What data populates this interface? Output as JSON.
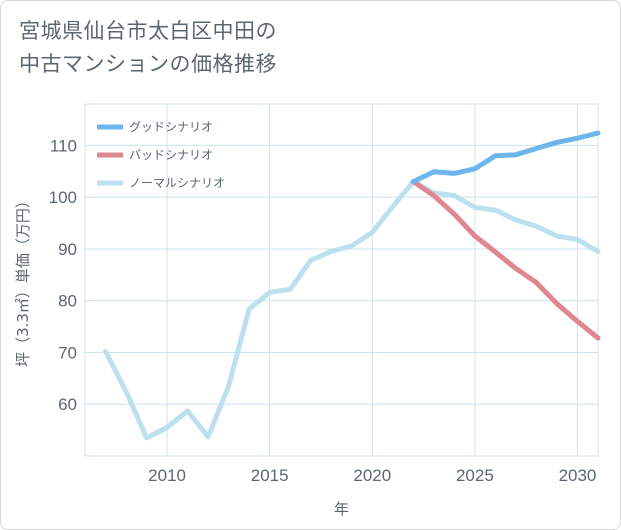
{
  "title_line1": "宮城県仙台市太白区中田の",
  "title_line2": "中古マンションの価格推移",
  "chart_data": {
    "type": "line",
    "xlabel": "年",
    "ylabel": "坪（3.3㎡）単価（万円）",
    "xlim": [
      2006,
      2031
    ],
    "ylim": [
      50,
      118
    ],
    "xticks": [
      2010,
      2015,
      2020,
      2025,
      2030
    ],
    "yticks": [
      60,
      70,
      80,
      90,
      100,
      110
    ],
    "grid": true,
    "legend_position": "top-left",
    "series": [
      {
        "name": "グッドシナリオ",
        "color": "#6cb6ec",
        "x": [
          2022,
          2023,
          2024,
          2025,
          2026,
          2027,
          2028,
          2029,
          2030,
          2031
        ],
        "values": [
          103,
          104.9,
          104.6,
          105.5,
          108.0,
          108.2,
          109.4,
          110.6,
          111.4,
          112.4
        ]
      },
      {
        "name": "バッドシナリオ",
        "color": "#de8791",
        "x": [
          2022,
          2023,
          2024,
          2025,
          2026,
          2027,
          2028,
          2029,
          2030,
          2031
        ],
        "values": [
          103,
          100.3,
          96.7,
          92.5,
          89.4,
          86.2,
          83.5,
          79.4,
          76.0,
          72.8
        ]
      },
      {
        "name": "ノーマルシナリオ",
        "color": "#bde0ef",
        "x": [
          2007,
          2008,
          2009,
          2010,
          2011,
          2012,
          2013,
          2014,
          2015,
          2016,
          2017,
          2018,
          2019,
          2020,
          2021,
          2022,
          2023,
          2024,
          2025,
          2026,
          2027,
          2028,
          2029,
          2030,
          2031
        ],
        "values": [
          70.2,
          62.5,
          53.5,
          55.5,
          58.7,
          53.7,
          63.5,
          78.4,
          81.6,
          82.2,
          87.8,
          89.5,
          90.6,
          93.2,
          98.2,
          103,
          100.8,
          100.3,
          98.0,
          97.5,
          95.6,
          94.4,
          92.5,
          91.8,
          89.5
        ]
      }
    ]
  }
}
